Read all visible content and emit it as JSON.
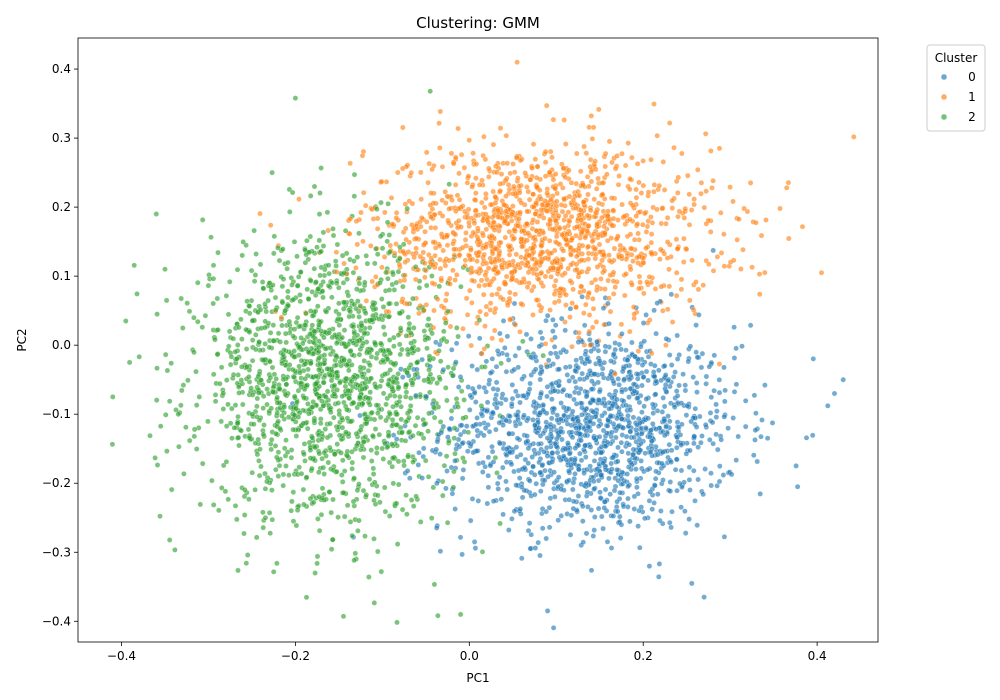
{
  "chart_data": {
    "type": "scatter",
    "title": "Clustering: GMM",
    "xlabel": "PC1",
    "ylabel": "PC2",
    "xlim": [
      -0.45,
      0.47
    ],
    "ylim": [
      -0.43,
      0.445
    ],
    "xticks": [
      -0.4,
      -0.2,
      0.0,
      0.2,
      0.4
    ],
    "xtick_labels": [
      "−0.4",
      "−0.2",
      "0.0",
      "0.2",
      "0.4"
    ],
    "yticks": [
      -0.4,
      -0.3,
      -0.2,
      -0.1,
      0.0,
      0.1,
      0.2,
      0.3,
      0.4
    ],
    "ytick_labels": [
      "−0.4",
      "−0.3",
      "−0.2",
      "−0.1",
      "0.0",
      "0.1",
      "0.2",
      "0.3",
      "0.4"
    ],
    "grid": false,
    "legend": {
      "title": "Cluster",
      "placement": "outside-upper-right",
      "entries": [
        "0",
        "1",
        "2"
      ]
    },
    "series": [
      {
        "name": "0",
        "color": "#1f77b4",
        "center": [
          0.14,
          -0.12
        ],
        "spread": [
          0.085,
          0.075
        ],
        "approx_count": 1400
      },
      {
        "name": "1",
        "color": "#ff7f0e",
        "center": [
          0.08,
          0.16
        ],
        "spread": [
          0.1,
          0.065
        ],
        "approx_count": 1400
      },
      {
        "name": "2",
        "color": "#2ca02c",
        "center": [
          -0.16,
          -0.05
        ],
        "spread": [
          0.075,
          0.1
        ],
        "approx_count": 1600
      }
    ],
    "notable_points": [
      {
        "series": "1",
        "x": 0.055,
        "y": 0.41
      },
      {
        "series": "0",
        "x": 0.43,
        "y": -0.05
      },
      {
        "series": "0",
        "x": 0.42,
        "y": -0.07
      },
      {
        "series": "2",
        "x": -0.41,
        "y": -0.075
      },
      {
        "series": "2",
        "x": -0.395,
        "y": 0.035
      },
      {
        "series": "2",
        "x": -0.36,
        "y": 0.19
      },
      {
        "series": "2",
        "x": -0.01,
        "y": -0.39
      },
      {
        "series": "0",
        "x": 0.09,
        "y": -0.385
      },
      {
        "series": "0",
        "x": 0.27,
        "y": -0.365
      },
      {
        "series": "2",
        "x": -0.2,
        "y": 0.358
      },
      {
        "series": "2",
        "x": -0.045,
        "y": 0.368
      },
      {
        "series": "1",
        "x": 0.405,
        "y": 0.105
      },
      {
        "series": "1",
        "x": 0.365,
        "y": 0.228
      }
    ]
  }
}
